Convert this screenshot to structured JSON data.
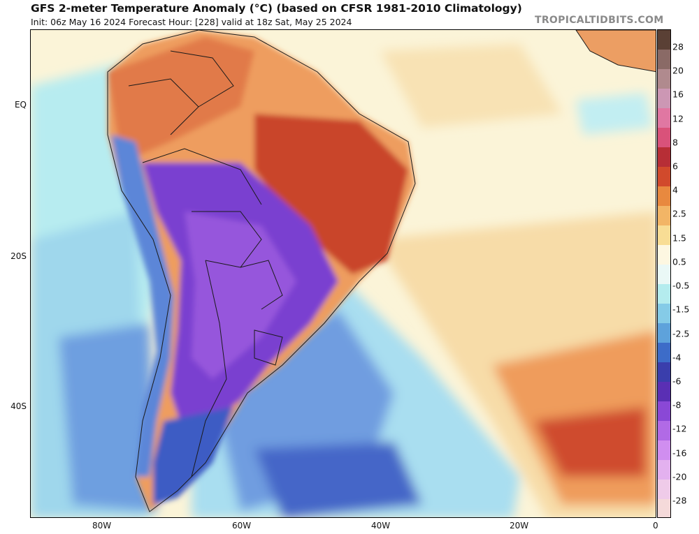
{
  "header": {
    "title": "GFS 2-meter Temperature Anomaly (°C) (based on CFSR 1981-2010 Climatology)",
    "subtitle": "Init: 06z May 16 2024   Forecast Hour: [228]   valid at 18z Sat, May 25 2024",
    "source": "TROPICALTIDBITS.COM"
  },
  "axes": {
    "lat_labels": [
      "EQ",
      "20S",
      "40S"
    ],
    "lon_labels": [
      "80W",
      "60W",
      "40W",
      "20W",
      "0"
    ]
  },
  "colorbar": {
    "labels": [
      "28",
      "20",
      "16",
      "12",
      "8",
      "6",
      "4",
      "2.5",
      "1.5",
      "0.5",
      "-0.5",
      "-1.5",
      "-2.5",
      "-4",
      "-6",
      "-8",
      "-12",
      "-16",
      "-20",
      "-28"
    ],
    "colors": [
      "#5a4035",
      "#8a6a66",
      "#b08a8e",
      "#cc97b4",
      "#e077a2",
      "#d9527a",
      "#b72e36",
      "#d14a2c",
      "#e8893f",
      "#f2b566",
      "#f8dd95",
      "#fdf7e1",
      "#eaf8f6",
      "#b4ecee",
      "#85cbe7",
      "#5ea2db",
      "#3d6cc8",
      "#3a3eac",
      "#5a2fb4",
      "#8a48d6",
      "#b16ae6",
      "#d08ef0",
      "#e3b1ef",
      "#efcbe9",
      "#f5dada"
    ]
  },
  "map_colors": {
    "ocean_neutral": "#fbf4d8",
    "warm_light": "#f6d7a0",
    "warm_mid": "#ee9d5e",
    "warm_strong": "#c9452c",
    "cold_light": "#b7ecf0",
    "cold_mid": "#7fb4e6",
    "cold_strong": "#3c5bc4",
    "cold_extreme": "#7a3fd0",
    "border": "#1a1a1a"
  }
}
